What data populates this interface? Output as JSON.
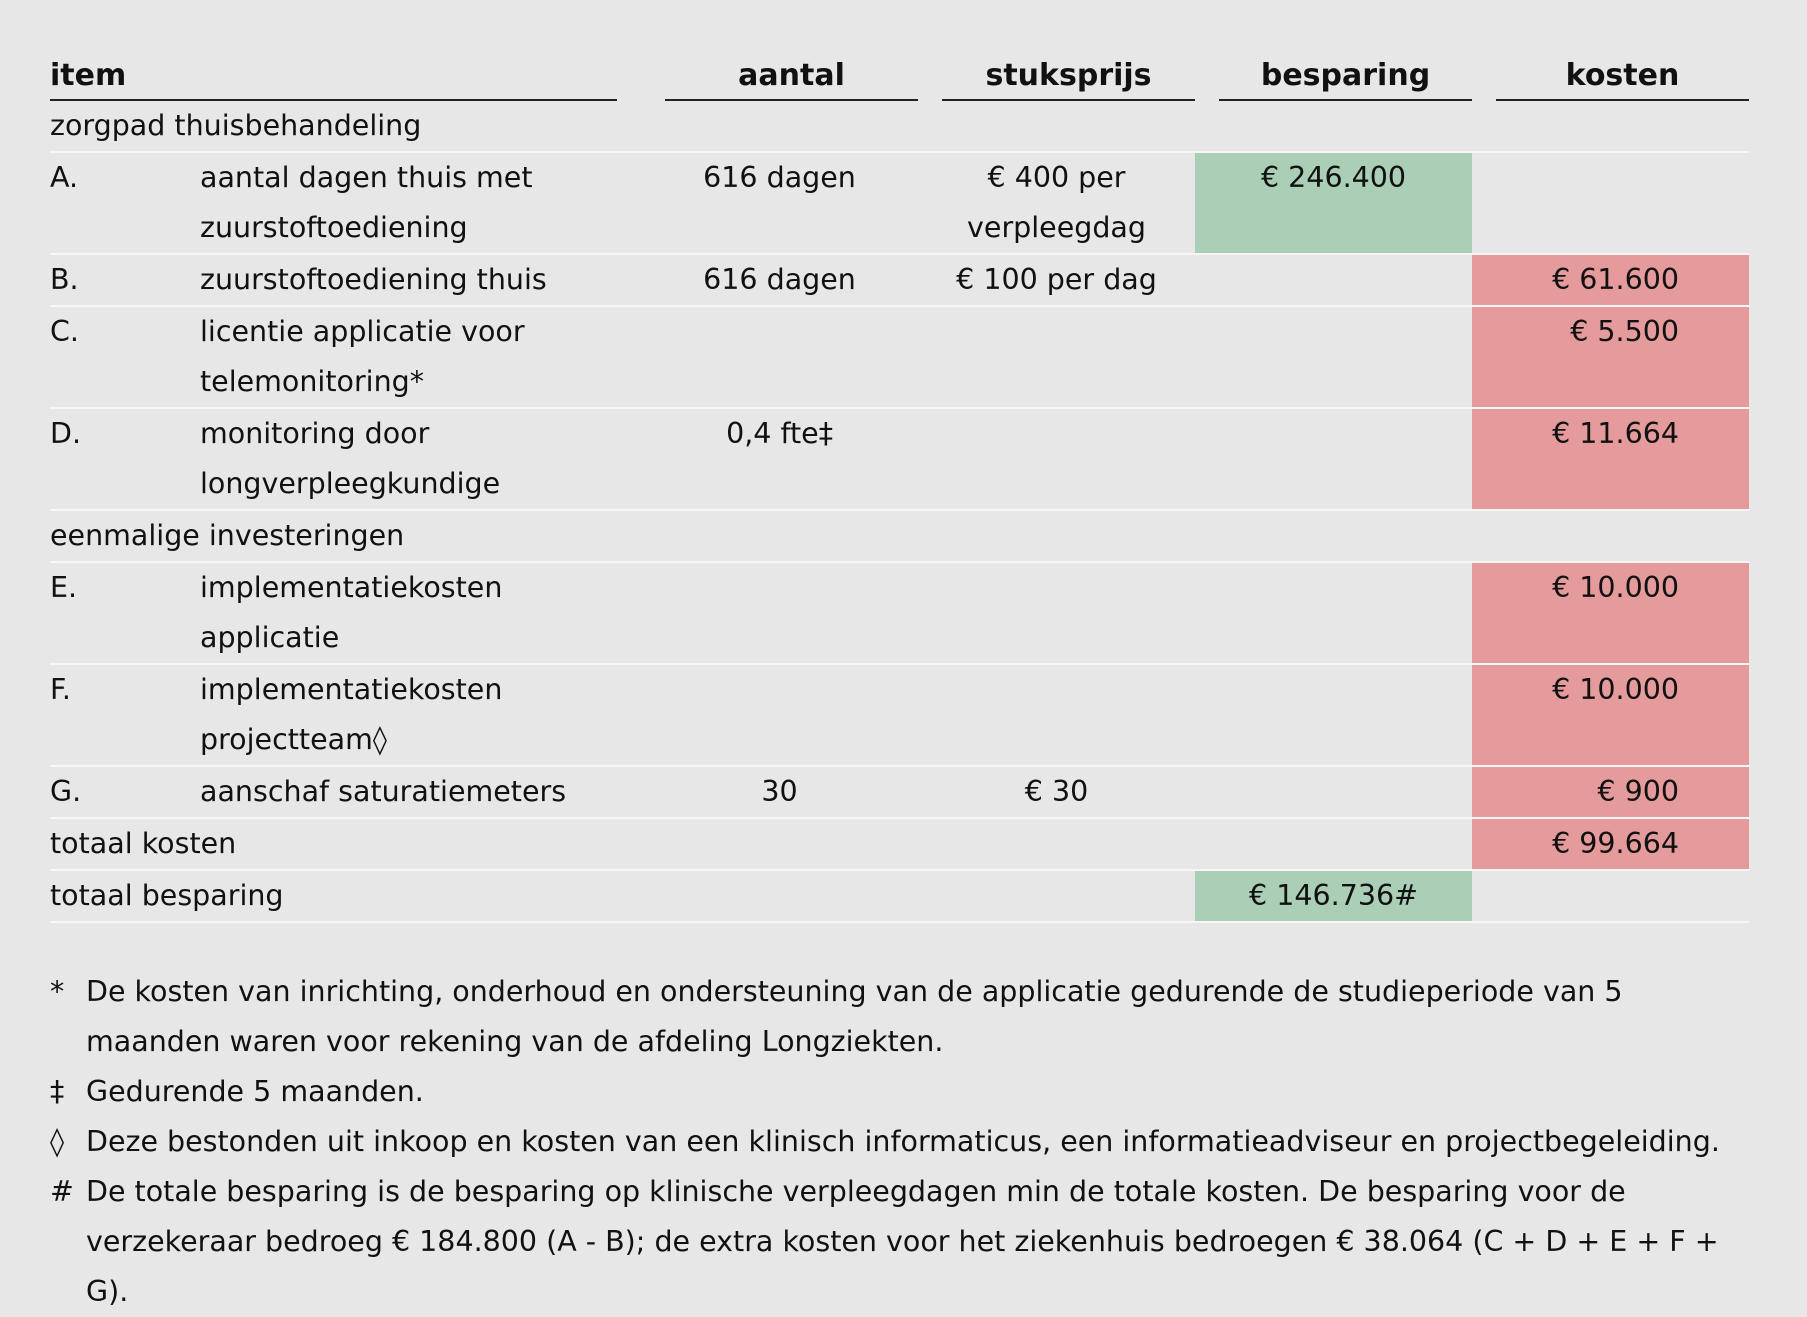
{
  "headers": {
    "item": "item",
    "aantal": "aantal",
    "stuksprijs": "stuksprijs",
    "besparing": "besparing",
    "kosten": "kosten"
  },
  "sections": {
    "zorgpad": "zorgpad thuisbehandeling",
    "eenmalig": "eenmalige investeringen"
  },
  "rows": [
    {
      "letter": "A.",
      "desc": [
        "aantal dagen thuis met",
        "zuurstoftoediening"
      ],
      "aantal": "616 dagen",
      "stuksprijs": [
        "€ 400 per",
        "verpleegdag"
      ],
      "besparing": "€ 246.400",
      "kosten": ""
    },
    {
      "letter": "B.",
      "desc": [
        "zuurstoftoediening thuis"
      ],
      "aantal": "616 dagen",
      "stuksprijs": [
        "€ 100 per dag"
      ],
      "besparing": "",
      "kosten": "€ 61.600"
    },
    {
      "letter": "C.",
      "desc": [
        "licentie applicatie voor",
        "telemonitoring*"
      ],
      "aantal": "",
      "stuksprijs": [
        ""
      ],
      "besparing": "",
      "kosten": "€ 5.500"
    },
    {
      "letter": "D.",
      "desc": [
        "monitoring door",
        "longverpleegkundige"
      ],
      "aantal": "0,4 fte‡",
      "stuksprijs": [
        ""
      ],
      "besparing": "",
      "kosten": "€ 11.664"
    },
    {
      "letter": "E.",
      "desc": [
        "implementatiekosten",
        "applicatie"
      ],
      "aantal": "",
      "stuksprijs": [
        ""
      ],
      "besparing": "",
      "kosten": "€ 10.000"
    },
    {
      "letter": "F.",
      "desc": [
        "implementatiekosten",
        "projectteam◊"
      ],
      "aantal": "",
      "stuksprijs": [
        ""
      ],
      "besparing": "",
      "kosten": "€ 10.000"
    },
    {
      "letter": "G.",
      "desc": [
        "aanschaf saturatiemeters"
      ],
      "aantal": "30",
      "stuksprijs": [
        "€ 30"
      ],
      "besparing": "",
      "kosten": "€ 900"
    }
  ],
  "totals": {
    "kosten_label": "totaal kosten",
    "kosten_value": "€ 99.664",
    "besparing_label": "totaal besparing",
    "besparing_value": "€ 146.736#"
  },
  "footnotes": [
    {
      "mark": "*",
      "text": "De kosten van inrichting, onderhoud en ondersteuning van de applicatie gedurende de studieperiode van 5 maanden waren voor rekening van de afdeling Longziekten."
    },
    {
      "mark": "‡",
      "text": "Gedurende 5 maanden."
    },
    {
      "mark": "◊",
      "text": "Deze bestonden uit inkoop en kosten van een klinisch informaticus, een informatieadviseur en projectbegeleiding."
    },
    {
      "mark": "#",
      "text": "De totale besparing is de besparing op klinische verpleegdagen min de totale kosten. De besparing voor de verzekeraar bedroeg € 184.800 (A - B); de extra kosten voor het ziekenhuis bedroegen € 38.064 (C + D + E + F + G)."
    }
  ],
  "colors": {
    "background": "#e7e7e7",
    "saving_green": "#aacfb6",
    "cost_red": "#e59b9c"
  }
}
